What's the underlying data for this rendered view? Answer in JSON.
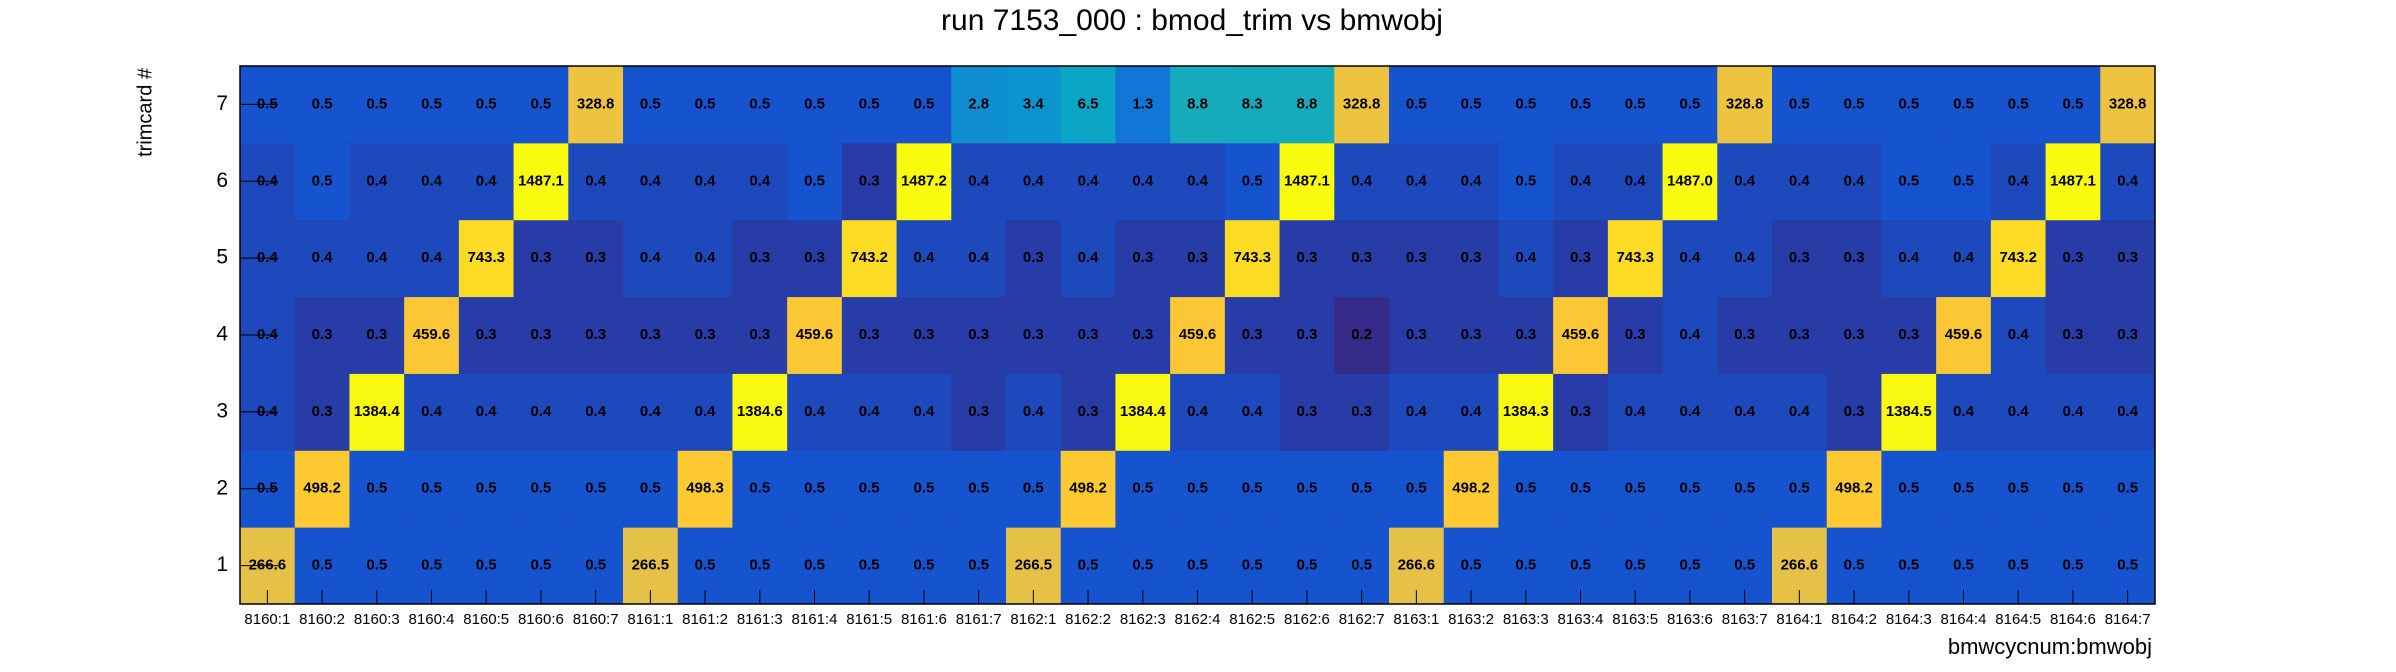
{
  "chart_data": {
    "type": "heatmap",
    "title": "run 7153_000 : bmod_trim vs bmwobj",
    "x_label": "bmwcycnum:bmwobj",
    "y_label": "trimcard #",
    "z_scale": "log",
    "palette": [
      "#352a87",
      "#0f5cdd",
      "#1481d6",
      "#06a4ca",
      "#2eb7a4",
      "#87bf77",
      "#d1bb59",
      "#fec832",
      "#f9fb0e"
    ],
    "categories": [
      "8160:1",
      "8160:2",
      "8160:3",
      "8160:4",
      "8160:5",
      "8160:6",
      "8160:7",
      "8161:1",
      "8161:2",
      "8161:3",
      "8161:4",
      "8161:5",
      "8161:6",
      "8161:7",
      "8162:1",
      "8162:2",
      "8162:3",
      "8162:4",
      "8162:5",
      "8162:6",
      "8162:7",
      "8163:1",
      "8163:2",
      "8163:3",
      "8163:4",
      "8163:5",
      "8163:6",
      "8163:7",
      "8164:1",
      "8164:2",
      "8164:3",
      "8164:4",
      "8164:5",
      "8164:6",
      "8164:7"
    ],
    "y_categories": [
      "1",
      "2",
      "3",
      "4",
      "5",
      "6",
      "7"
    ],
    "values": [
      [
        266.6,
        0.5,
        0.5,
        0.5,
        0.5,
        0.5,
        0.5,
        266.5,
        0.5,
        0.5,
        0.5,
        0.5,
        0.5,
        0.5,
        266.5,
        0.5,
        0.5,
        0.5,
        0.5,
        0.5,
        0.5,
        266.6,
        0.5,
        0.5,
        0.5,
        0.5,
        0.5,
        0.5,
        266.6,
        0.5,
        0.5,
        0.5,
        0.5,
        0.5,
        0.5
      ],
      [
        0.5,
        498.2,
        0.5,
        0.5,
        0.5,
        0.5,
        0.5,
        0.5,
        498.3,
        0.5,
        0.5,
        0.5,
        0.5,
        0.5,
        0.5,
        498.2,
        0.5,
        0.5,
        0.5,
        0.5,
        0.5,
        0.5,
        498.2,
        0.5,
        0.5,
        0.5,
        0.5,
        0.5,
        0.5,
        498.2,
        0.5,
        0.5,
        0.5,
        0.5,
        0.5
      ],
      [
        0.4,
        0.3,
        1384.4,
        0.4,
        0.4,
        0.4,
        0.4,
        0.4,
        0.4,
        1384.6,
        0.4,
        0.4,
        0.4,
        0.3,
        0.4,
        0.3,
        1384.4,
        0.4,
        0.4,
        0.3,
        0.3,
        0.4,
        0.4,
        1384.3,
        0.3,
        0.4,
        0.4,
        0.4,
        0.4,
        0.3,
        1384.5,
        0.4,
        0.4,
        0.4,
        0.4
      ],
      [
        0.4,
        0.3,
        0.3,
        459.6,
        0.3,
        0.3,
        0.3,
        0.3,
        0.3,
        0.3,
        459.6,
        0.3,
        0.3,
        0.3,
        0.3,
        0.3,
        0.3,
        459.6,
        0.3,
        0.3,
        0.2,
        0.3,
        0.3,
        0.3,
        459.6,
        0.3,
        0.4,
        0.3,
        0.3,
        0.3,
        0.3,
        459.6,
        0.4,
        0.3,
        0.3
      ],
      [
        0.4,
        0.4,
        0.4,
        0.4,
        743.3,
        0.3,
        0.3,
        0.4,
        0.4,
        0.3,
        0.3,
        743.2,
        0.4,
        0.4,
        0.3,
        0.4,
        0.3,
        0.3,
        743.3,
        0.3,
        0.3,
        0.3,
        0.3,
        0.4,
        0.3,
        743.3,
        0.4,
        0.4,
        0.3,
        0.3,
        0.4,
        0.4,
        743.2,
        0.3,
        0.3
      ],
      [
        0.4,
        0.5,
        0.4,
        0.4,
        0.4,
        1487.1,
        0.4,
        0.4,
        0.4,
        0.4,
        0.5,
        0.3,
        1487.2,
        0.4,
        0.4,
        0.4,
        0.4,
        0.4,
        0.5,
        1487.1,
        0.4,
        0.4,
        0.4,
        0.5,
        0.4,
        0.4,
        1487.0,
        0.4,
        0.4,
        0.4,
        0.5,
        0.5,
        0.4,
        1487.1,
        0.4
      ],
      [
        0.5,
        0.5,
        0.5,
        0.5,
        0.5,
        0.5,
        328.8,
        0.5,
        0.5,
        0.5,
        0.5,
        0.5,
        0.5,
        2.8,
        3.4,
        6.5,
        1.3,
        8.8,
        8.3,
        8.8,
        328.8,
        0.5,
        0.5,
        0.5,
        0.5,
        0.5,
        0.5,
        328.8,
        0.5,
        0.5,
        0.5,
        0.5,
        0.5,
        0.5,
        328.8
      ]
    ],
    "value_labels": [
      [
        "266.6",
        "0.5",
        "0.5",
        "0.5",
        "0.5",
        "0.5",
        "0.5",
        "266.5",
        "0.5",
        "0.5",
        "0.5",
        "0.5",
        "0.5",
        "0.5",
        "266.5",
        "0.5",
        "0.5",
        "0.5",
        "0.5",
        "0.5",
        "0.5",
        "266.6",
        "0.5",
        "0.5",
        "0.5",
        "0.5",
        "0.5",
        "0.5",
        "266.6",
        "0.5",
        "0.5",
        "0.5",
        "0.5",
        "0.5",
        "0.5"
      ],
      [
        "0.5",
        "498.2",
        "0.5",
        "0.5",
        "0.5",
        "0.5",
        "0.5",
        "0.5",
        "498.3",
        "0.5",
        "0.5",
        "0.5",
        "0.5",
        "0.5",
        "0.5",
        "498.2",
        "0.5",
        "0.5",
        "0.5",
        "0.5",
        "0.5",
        "0.5",
        "498.2",
        "0.5",
        "0.5",
        "0.5",
        "0.5",
        "0.5",
        "0.5",
        "498.2",
        "0.5",
        "0.5",
        "0.5",
        "0.5",
        "0.5"
      ],
      [
        "0.4",
        "0.3",
        "1384.4",
        "0.4",
        "0.4",
        "0.4",
        "0.4",
        "0.4",
        "0.4",
        "1384.6",
        "0.4",
        "0.4",
        "0.4",
        "0.3",
        "0.4",
        "0.3",
        "1384.4",
        "0.4",
        "0.4",
        "0.3",
        "0.3",
        "0.4",
        "0.4",
        "1384.3",
        "0.3",
        "0.4",
        "0.4",
        "0.4",
        "0.4",
        "0.3",
        "1384.5",
        "0.4",
        "0.4",
        "0.4",
        "0.4"
      ],
      [
        "0.4",
        "0.3",
        "0.3",
        "459.6",
        "0.3",
        "0.3",
        "0.3",
        "0.3",
        "0.3",
        "0.3",
        "459.6",
        "0.3",
        "0.3",
        "0.3",
        "0.3",
        "0.3",
        "0.3",
        "459.6",
        "0.3",
        "0.3",
        "0.2",
        "0.3",
        "0.3",
        "0.3",
        "459.6",
        "0.3",
        "0.4",
        "0.3",
        "0.3",
        "0.3",
        "0.3",
        "459.6",
        "0.4",
        "0.3",
        "0.3"
      ],
      [
        "0.4",
        "0.4",
        "0.4",
        "0.4",
        "743.3",
        "0.3",
        "0.3",
        "0.4",
        "0.4",
        "0.3",
        "0.3",
        "743.2",
        "0.4",
        "0.4",
        "0.3",
        "0.4",
        "0.3",
        "0.3",
        "743.3",
        "0.3",
        "0.3",
        "0.3",
        "0.3",
        "0.4",
        "0.3",
        "743.3",
        "0.4",
        "0.4",
        "0.3",
        "0.3",
        "0.4",
        "0.4",
        "743.2",
        "0.3",
        "0.3"
      ],
      [
        "0.4",
        "0.5",
        "0.4",
        "0.4",
        "0.4",
        "1487.1",
        "0.4",
        "0.4",
        "0.4",
        "0.4",
        "0.5",
        "0.3",
        "1487.2",
        "0.4",
        "0.4",
        "0.4",
        "0.4",
        "0.4",
        "0.5",
        "1487.1",
        "0.4",
        "0.4",
        "0.4",
        "0.5",
        "0.4",
        "0.4",
        "1487.0",
        "0.4",
        "0.4",
        "0.4",
        "0.5",
        "0.5",
        "0.4",
        "1487.1",
        "0.4"
      ],
      [
        "0.5",
        "0.5",
        "0.5",
        "0.5",
        "0.5",
        "0.5",
        "328.8",
        "0.5",
        "0.5",
        "0.5",
        "0.5",
        "0.5",
        "0.5",
        "2.8",
        "3.4",
        "6.5",
        "1.3",
        "8.8",
        "8.3",
        "8.8",
        "328.8",
        "0.5",
        "0.5",
        "0.5",
        "0.5",
        "0.5",
        "0.5",
        "328.8",
        "0.5",
        "0.5",
        "0.5",
        "0.5",
        "0.5",
        "0.5",
        "328.8"
      ]
    ]
  }
}
